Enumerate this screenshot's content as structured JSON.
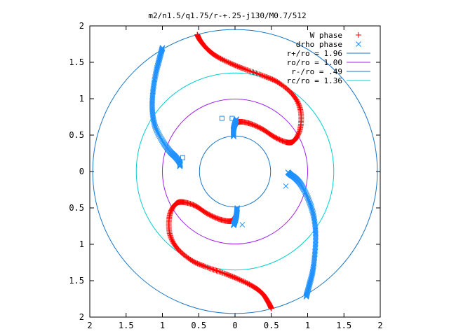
{
  "chart_data": {
    "type": "scatter",
    "title": "m2/n1.5/q1.75/r-+.25-j130/M0.7/512",
    "xlabel": "",
    "ylabel": "",
    "xlim": [
      -2,
      2
    ],
    "ylim": [
      -2,
      2
    ],
    "x_tick_labels": [
      "2",
      "1.5",
      "1",
      "0.5",
      "0",
      "0.5",
      "1",
      "1.5",
      "2"
    ],
    "y_tick_labels": [
      "2",
      "1.5",
      "1",
      "0.5",
      "0",
      "0.5",
      "1",
      "1.5",
      "2"
    ],
    "grid": false,
    "legend_position": "top-right",
    "colors": {
      "w_phase": "#ff0000",
      "drho_phase": "#1e90ff",
      "r_plus": "#1a75c4",
      "ro": "#a020f0",
      "r_minus": "#1a75c4",
      "rc": "#00d0d0"
    },
    "series": [
      {
        "name": "W phase",
        "marker": "+",
        "color": "#ff0000",
        "arms": [
          [
            [
              -0.52,
              1.88
            ],
            [
              -0.48,
              1.8
            ],
            [
              -0.38,
              1.68
            ],
            [
              -0.25,
              1.58
            ],
            [
              -0.05,
              1.48
            ],
            [
              0.15,
              1.4
            ],
            [
              0.4,
              1.31
            ],
            [
              0.6,
              1.22
            ],
            [
              0.8,
              1.05
            ],
            [
              0.9,
              0.85
            ],
            [
              0.9,
              0.6
            ],
            [
              0.82,
              0.43
            ],
            [
              0.72,
              0.4
            ],
            [
              0.55,
              0.47
            ],
            [
              0.38,
              0.58
            ],
            [
              0.2,
              0.66
            ],
            [
              0.05,
              0.68
            ],
            [
              -0.02,
              0.6
            ]
          ],
          [
            [
              0.5,
              -1.88
            ],
            [
              0.46,
              -1.8
            ],
            [
              0.38,
              -1.68
            ],
            [
              0.25,
              -1.58
            ],
            [
              0.05,
              -1.48
            ],
            [
              -0.15,
              -1.4
            ],
            [
              -0.4,
              -1.31
            ],
            [
              -0.6,
              -1.22
            ],
            [
              -0.8,
              -1.05
            ],
            [
              -0.9,
              -0.85
            ],
            [
              -0.9,
              -0.6
            ],
            [
              -0.82,
              -0.45
            ],
            [
              -0.72,
              -0.42
            ],
            [
              -0.55,
              -0.47
            ],
            [
              -0.38,
              -0.58
            ],
            [
              -0.2,
              -0.66
            ],
            [
              -0.05,
              -0.68
            ],
            [
              0.02,
              -0.6
            ]
          ]
        ]
      },
      {
        "name": "drho phase",
        "marker": "x",
        "color": "#1e90ff",
        "arms": [
          [
            [
              -1.0,
              1.7
            ],
            [
              -1.04,
              1.55
            ],
            [
              -1.09,
              1.35
            ],
            [
              -1.13,
              1.1
            ],
            [
              -1.14,
              0.85
            ],
            [
              -1.1,
              0.62
            ],
            [
              -1.0,
              0.42
            ],
            [
              -0.9,
              0.28
            ],
            [
              -0.82,
              0.2
            ],
            [
              -0.76,
              0.12
            ],
            [
              -0.76,
              0.07
            ]
          ],
          [
            [
              0.98,
              -1.72
            ],
            [
              1.02,
              -1.57
            ],
            [
              1.07,
              -1.37
            ],
            [
              1.1,
              -1.12
            ],
            [
              1.11,
              -0.85
            ],
            [
              1.08,
              -0.6
            ],
            [
              1.01,
              -0.38
            ],
            [
              0.92,
              -0.2
            ],
            [
              0.84,
              -0.1
            ],
            [
              0.76,
              -0.04
            ],
            [
              0.73,
              -0.01
            ]
          ],
          [
            [
              -0.02,
              0.48
            ],
            [
              -0.02,
              0.58
            ],
            [
              0.0,
              0.66
            ],
            [
              0.02,
              0.72
            ]
          ],
          [
            [
              0.03,
              -0.5
            ],
            [
              0.02,
              -0.6
            ],
            [
              0.0,
              -0.68
            ],
            [
              -0.02,
              -0.74
            ]
          ]
        ],
        "extra_points": [
          [
            -0.18,
            0.73
          ],
          [
            -0.04,
            0.73
          ],
          [
            -0.72,
            0.19
          ],
          [
            0.7,
            -0.2
          ],
          [
            0.1,
            -0.73
          ],
          [
            -0.02,
            -0.73
          ]
        ]
      }
    ],
    "circles": [
      {
        "name": "r+/ro = 1.96",
        "radius": 1.96,
        "color": "#1a75c4"
      },
      {
        "name": "ro/ro = 1.00",
        "radius": 1.0,
        "color": "#a020f0"
      },
      {
        "name": "r-/ro = .49",
        "radius": 0.49,
        "color": "#1a75c4"
      },
      {
        "name": "rc/ro = 1.36",
        "radius": 1.36,
        "color": "#00d0d0"
      }
    ]
  }
}
